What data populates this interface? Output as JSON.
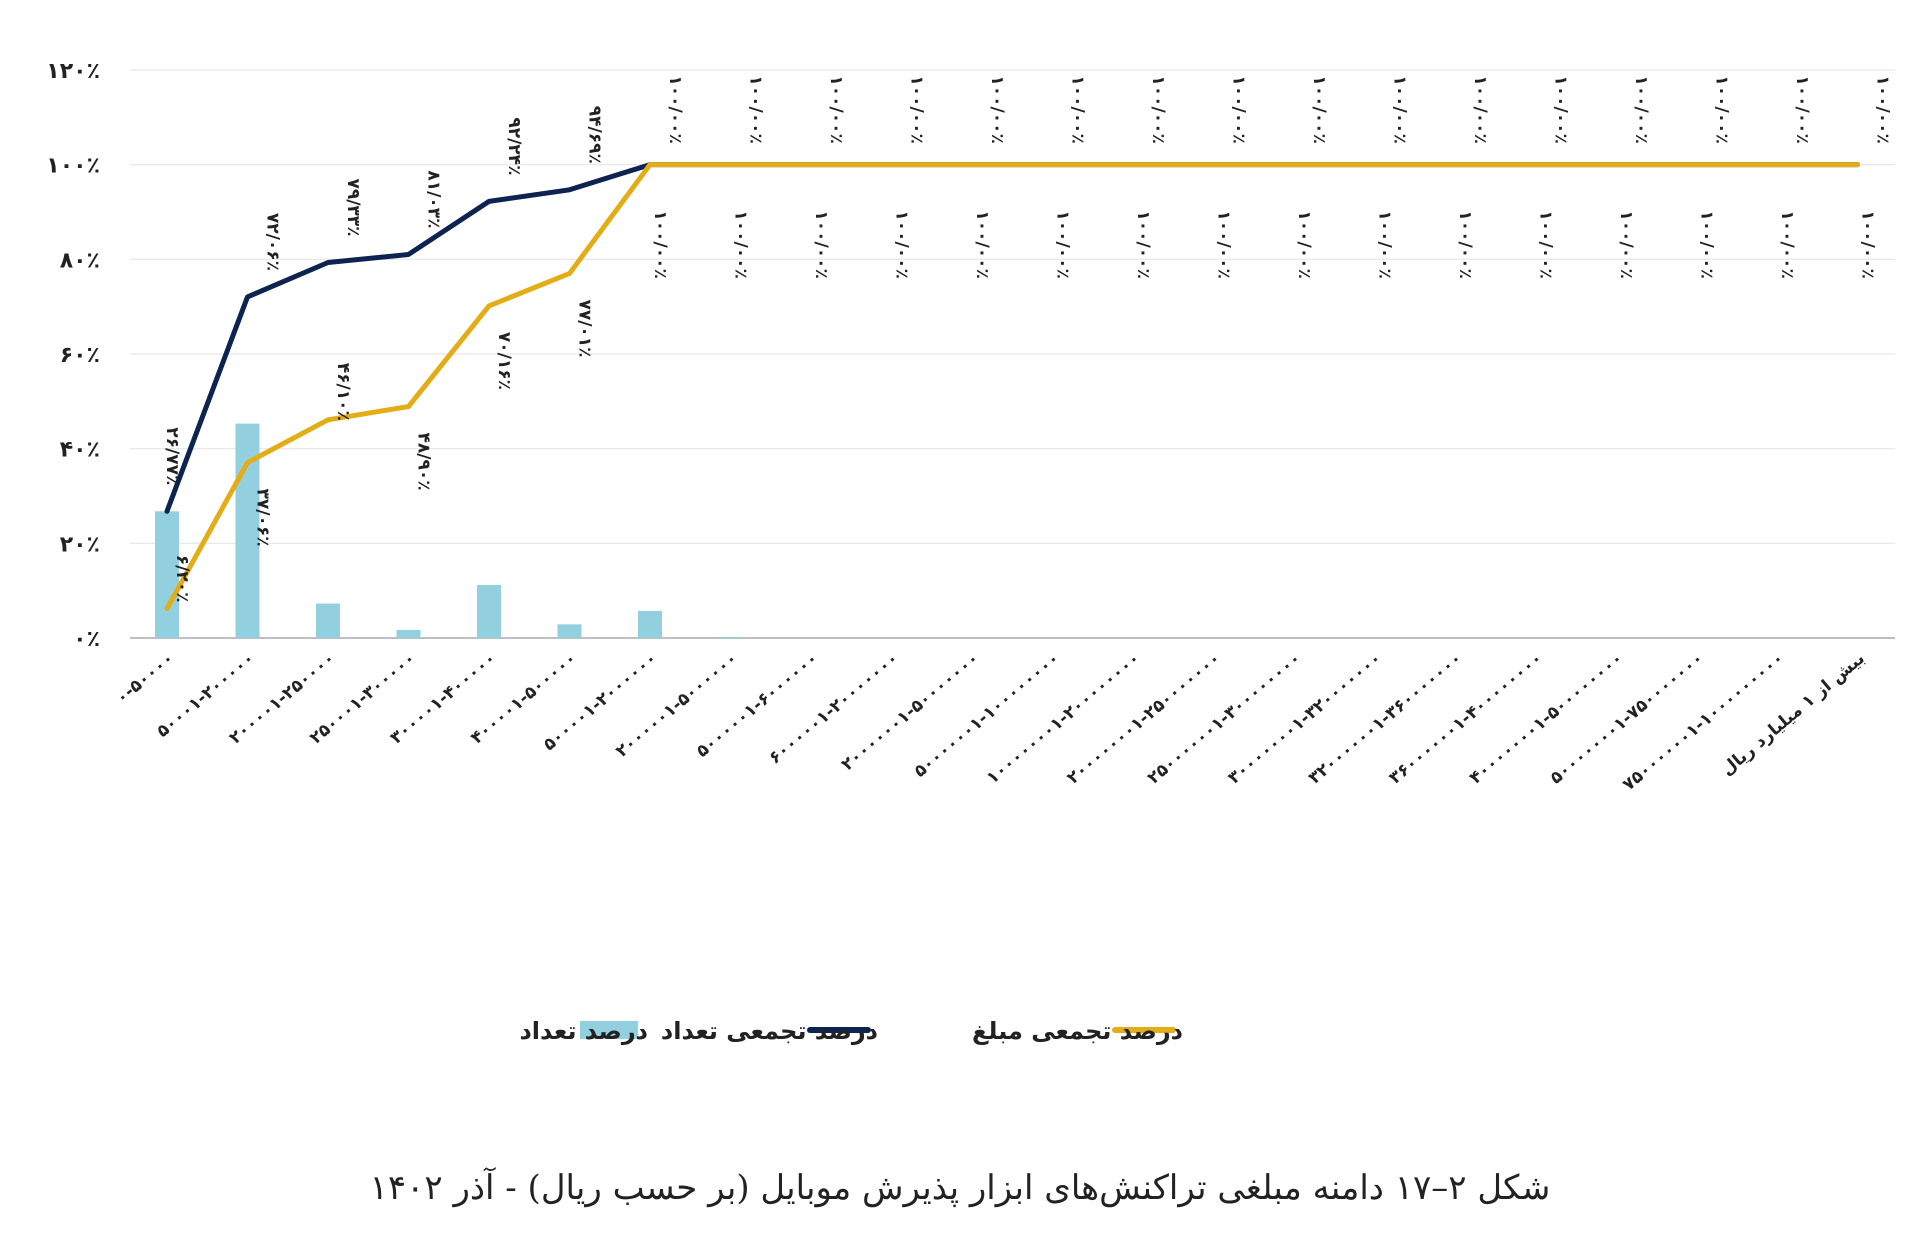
{
  "caption": "شکل ۲–۱۷ دامنه مبلغی تراکنش‌های ابزار پذیرش موبایل (بر حسب ریال) - آذر ۱۴۰۲",
  "chart_data": {
    "type": "bar",
    "title": "",
    "xlabel": "",
    "ylabel": "",
    "ylim": [
      0,
      120
    ],
    "grid": true,
    "legend_position": "bottom",
    "y_ticks": [
      0,
      20,
      40,
      60,
      80,
      100,
      120
    ],
    "y_tick_labels": [
      "۰٪",
      "۲۰٪",
      "۴۰٪",
      "۶۰٪",
      "۸۰٪",
      "۱۰۰٪",
      "۱۲۰٪"
    ],
    "categories": [
      "۰-۵۰۰۰۰",
      "۵۰۰۰۱-۲۰۰۰۰۰",
      "۲۰۰۰۰۱-۲۵۰۰۰۰",
      "۲۵۰۰۰۱-۳۰۰۰۰۰",
      "۳۰۰۰۰۱-۴۰۰۰۰۰",
      "۴۰۰۰۰۱-۵۰۰۰۰۰",
      "۵۰۰۰۰۱-۲۰۰۰۰۰۰",
      "۲۰۰۰۰۰۱-۵۰۰۰۰۰۰",
      "۵۰۰۰۰۰۱-۶۰۰۰۰۰۰",
      "۶۰۰۰۰۰۱-۲۰۰۰۰۰۰۰",
      "۲۰۰۰۰۰۰۱-۵۰۰۰۰۰۰۰",
      "۵۰۰۰۰۰۰۱-۱۰۰۰۰۰۰۰۰",
      "۱۰۰۰۰۰۰۰۱-۲۰۰۰۰۰۰۰۰",
      "۲۰۰۰۰۰۰۰۱-۲۵۰۰۰۰۰۰۰",
      "۲۵۰۰۰۰۰۰۱-۳۰۰۰۰۰۰۰۰",
      "۳۰۰۰۰۰۰۰۱-۳۲۰۰۰۰۰۰۰",
      "۳۲۰۰۰۰۰۰۱-۳۶۰۰۰۰۰۰۰",
      "۳۶۰۰۰۰۰۰۱-۴۰۰۰۰۰۰۰۰",
      "۴۰۰۰۰۰۰۰۱-۵۰۰۰۰۰۰۰۰",
      "۵۰۰۰۰۰۰۰۱-۷۵۰۰۰۰۰۰۰",
      "۷۵۰۰۰۰۰۰۱-۱۰۰۰۰۰۰۰۰۰",
      "بیش از ۱ میلیارد ریال"
    ],
    "series": [
      {
        "name": "درصد تعداد",
        "kind": "bar",
        "color": "#92d0e0",
        "values": [
          26.77,
          45.29,
          7.27,
          1.7,
          11.21,
          2.88,
          5.72,
          0.21,
          0.01,
          0.01,
          0.01,
          0.01,
          0.01,
          0.01,
          0.01,
          0.01,
          0.01,
          0.01,
          0.01,
          0.01,
          0.01,
          0.01
        ],
        "labels": [
          "۲۶/۷۷٪",
          "",
          "",
          "",
          "",
          "",
          "",
          "",
          "",
          "",
          "",
          "",
          "",
          "",
          "",
          "",
          "",
          "",
          "",
          "",
          "",
          ""
        ]
      },
      {
        "name": "درصد تجمعی تعداد",
        "kind": "line",
        "color": "#0d2350",
        "values": [
          26.77,
          72.06,
          79.33,
          81.03,
          92.24,
          94.69,
          100,
          100,
          100,
          100,
          100,
          100,
          100,
          100,
          100,
          100,
          100,
          100,
          100,
          100,
          100,
          100
        ],
        "labels": [
          "",
          "۷۲/۰۶٪",
          "۷۹/۳۳٪",
          "۸۱/۰۳٪",
          "۹۲/۲۴٪",
          "۹۴/۶۹٪",
          "۱۰۰/۰۰٪",
          "۱۰۰/۰۰٪",
          "۱۰۰/۰۰٪",
          "۱۰۰/۰۰٪",
          "۱۰۰/۰۰٪",
          "۱۰۰/۰۰٪",
          "۱۰۰/۰۰٪",
          "۱۰۰/۰۰٪",
          "۱۰۰/۰۰٪",
          "۱۰۰/۰۰٪",
          "۱۰۰/۰۰٪",
          "۱۰۰/۰۰٪",
          "۱۰۰/۰۰٪",
          "۱۰۰/۰۰٪",
          "۱۰۰/۰۰٪",
          "۱۰۰/۰۰٪"
        ]
      },
      {
        "name": "درصد تجمعی مبلغ",
        "kind": "line",
        "color": "#e3ad17",
        "values": [
          6.2,
          37.06,
          46.1,
          48.9,
          70.16,
          77.01,
          100,
          100,
          100,
          100,
          100,
          100,
          100,
          100,
          100,
          100,
          100,
          100,
          100,
          100,
          100,
          100
        ],
        "labels": [
          "۶/۲۰٪",
          "۳۷/۰۶٪",
          "۴۶/۱۰٪",
          "۴۸/۹۰٪",
          "۷۰/۱۶٪",
          "۷۷/۰۱٪",
          "۱۰۰/۰۰٪",
          "۱۰۰/۰۰٪",
          "۱۰۰/۰۰٪",
          "۱۰۰/۰۰٪",
          "۱۰۰/۰۰٪",
          "۱۰۰/۰۰٪",
          "۱۰۰/۰۰٪",
          "۱۰۰/۰۰٪",
          "۱۰۰/۰۰٪",
          "۱۰۰/۰۰٪",
          "۱۰۰/۰۰٪",
          "۱۰۰/۰۰٪",
          "۱۰۰/۰۰٪",
          "۱۰۰/۰۰٪",
          "۱۰۰/۰۰٪",
          "۱۰۰/۰۰٪"
        ]
      }
    ]
  }
}
